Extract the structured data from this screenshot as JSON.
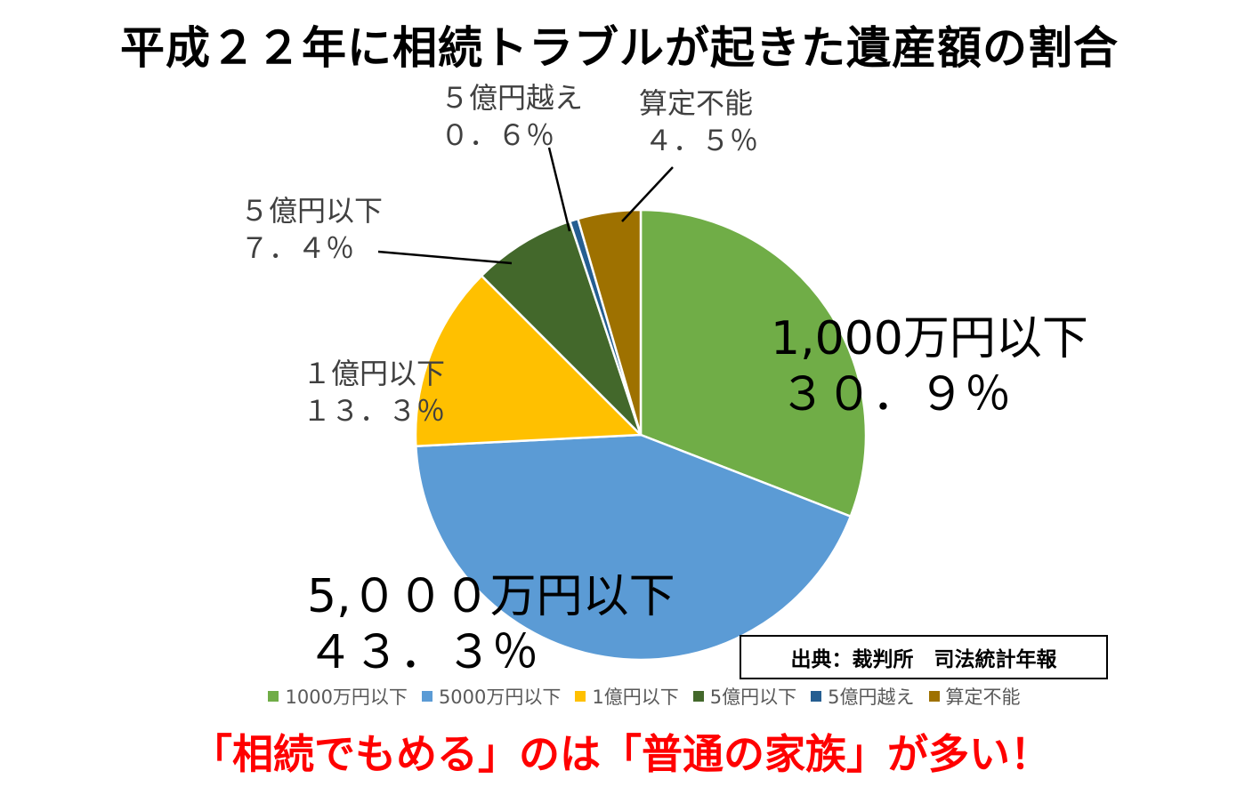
{
  "title": "平成２２年に相続トラブルが起きた遺産額の割合",
  "source": "出典：裁判所　司法統計年報",
  "note": "「相続でもめる」のは「普通の家族」が多い！",
  "chart_data": {
    "type": "pie",
    "title": "平成２２年に相続トラブルが起きた遺産額の割合",
    "legend_position": "bottom",
    "slices": [
      {
        "legend": "1000万円以下",
        "label": "1,000万円以下",
        "value_label": "３０．９％",
        "value": 30.9,
        "color": "#70ad47"
      },
      {
        "legend": "5000万円以下",
        "label": "5,０００万円以下",
        "value_label": "４３．３％",
        "value": 43.3,
        "color": "#5b9bd5"
      },
      {
        "legend": "1億円以下",
        "label": "１億円以下",
        "value_label": "１３．３％",
        "value": 13.3,
        "color": "#ffc000"
      },
      {
        "legend": "5億円以下",
        "label": "５億円以下",
        "value_label": "７．４％",
        "value": 7.4,
        "color": "#43682b"
      },
      {
        "legend": "5億円越え",
        "label": "５億円越え",
        "value_label": "０．６％",
        "value": 0.6,
        "color": "#255e91"
      },
      {
        "legend": "算定不能",
        "label": "算定不能",
        "value_label": "４．５％",
        "value": 4.5,
        "color": "#9e7100"
      }
    ]
  }
}
